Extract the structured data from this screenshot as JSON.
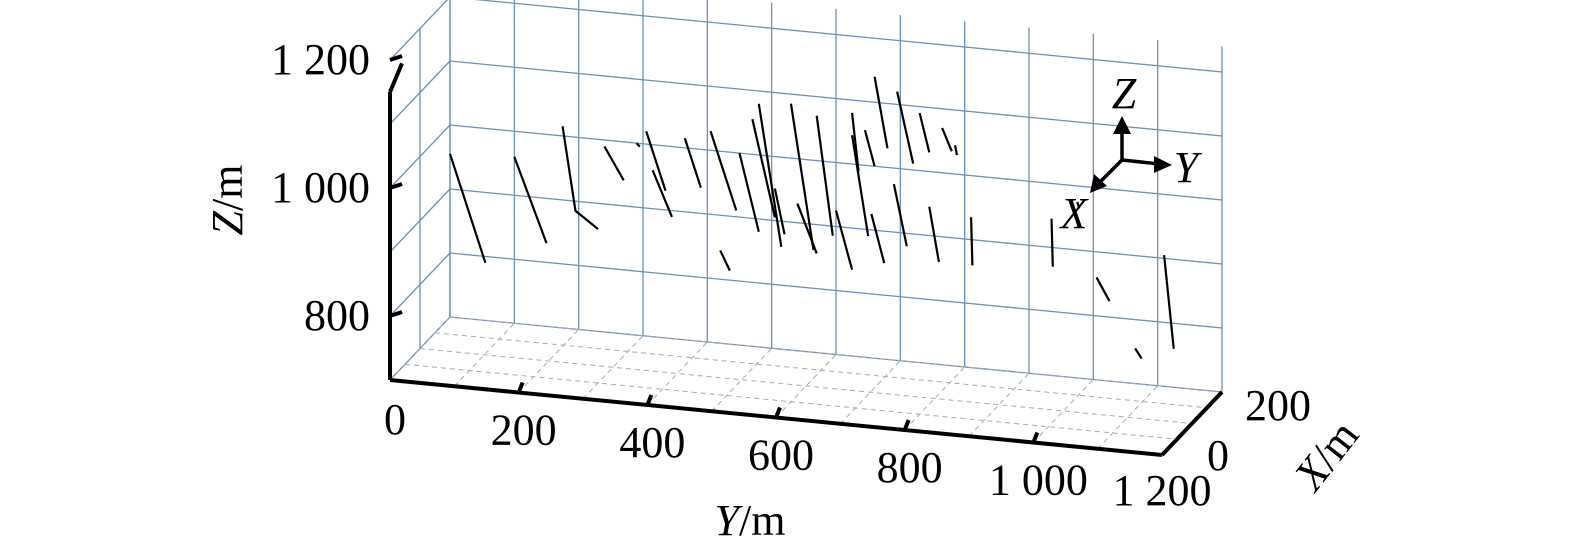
{
  "chart_data": {
    "type": "scatter",
    "subtype": "3d-line-traces",
    "xlabel": "X/m",
    "ylabel": "Y/m",
    "zlabel": "Z/m",
    "xlim": [
      0,
      200
    ],
    "ylim": [
      0,
      1200
    ],
    "zlim": [
      700,
      1200
    ],
    "x_ticks": [
      "0",
      "200"
    ],
    "y_ticks": [
      "0",
      "200",
      "400",
      "600",
      "800",
      "1 000",
      "1 200"
    ],
    "z_ticks": [
      "800",
      "1 000",
      "1 200"
    ],
    "orientation_triad": {
      "z": "Z",
      "y": "Y",
      "x": "X"
    },
    "grid": true,
    "trace_color": "#000000",
    "grid_color": "#6f8fb5",
    "traces": [
      {
        "y": [
          0,
          55
        ],
        "z": [
          955,
          790
        ]
      },
      {
        "y": [
          100,
          150
        ],
        "z": [
          960,
          830
        ]
      },
      {
        "y": [
          175,
          195,
          230
        ],
        "z": [
          1015,
          885,
          860
        ]
      },
      {
        "y": [
          240,
          270
        ],
        "z": [
          990,
          940
        ]
      },
      {
        "y": [
          290,
          295
        ],
        "z": [
          1000,
          995
        ]
      },
      {
        "y": [
          305,
          335
        ],
        "z": [
          1020,
          930
        ]
      },
      {
        "y": [
          315,
          345
        ],
        "z": [
          960,
          890
        ]
      },
      {
        "y": [
          365,
          390
        ],
        "z": [
          1015,
          940
        ]
      },
      {
        "y": [
          405,
          445
        ],
        "z": [
          1030,
          910
        ]
      },
      {
        "y": [
          420,
          435
        ],
        "z": [
          845,
          815
        ]
      },
      {
        "y": [
          450,
          480
        ],
        "z": [
          1000,
          880
        ]
      },
      {
        "y": [
          470,
          505
        ],
        "z": [
          1055,
          905
        ]
      },
      {
        "y": [
          480,
          515
        ],
        "z": [
          1080,
          860
        ]
      },
      {
        "y": [
          505,
          520
        ],
        "z": [
          950,
          880
        ]
      },
      {
        "y": [
          530,
          565
        ],
        "z": [
          1085,
          860
        ]
      },
      {
        "y": [
          540,
          570
        ],
        "z": [
          930,
          855
        ]
      },
      {
        "y": [
          570,
          595
        ],
        "z": [
          1070,
          885
        ]
      },
      {
        "y": [
          600,
          625
        ],
        "z": [
          925,
          835
        ]
      },
      {
        "y": [
          625,
          635
        ],
        "z": [
          1080,
          990
        ]
      },
      {
        "y": [
          625,
          650
        ],
        "z": [
          1045,
          890
        ]
      },
      {
        "y": [
          645,
          660
        ],
        "z": [
          1055,
          1000
        ]
      },
      {
        "y": [
          655,
          675
        ],
        "z": [
          925,
          850
        ]
      },
      {
        "y": [
          660,
          680
        ],
        "z": [
          1140,
          1030
        ]
      },
      {
        "y": [
          695,
          720
        ],
        "z": [
          1120,
          1010
        ]
      },
      {
        "y": [
          690,
          710
        ],
        "z": [
          975,
          880
        ]
      },
      {
        "y": [
          730,
          745
        ],
        "z": [
          1090,
          1030
        ]
      },
      {
        "y": [
          745,
          760
        ],
        "z": [
          945,
          860
        ]
      },
      {
        "y": [
          765,
          780
        ],
        "z": [
          1070,
          1035
        ]
      },
      {
        "y": [
          785,
          788
        ],
        "z": [
          1045,
          1030
        ]
      },
      {
        "y": [
          810,
          812
        ],
        "z": [
          935,
          860
        ]
      },
      {
        "y": [
          935,
          937
        ],
        "z": [
          945,
          870
        ]
      },
      {
        "y": [
          975,
          978
        ],
        "z": [
          975,
          965
        ]
      },
      {
        "y": [
          1005,
          1025
        ],
        "z": [
          860,
          825
        ]
      },
      {
        "y": [
          1065,
          1075
        ],
        "z": [
          755,
          740
        ]
      },
      {
        "y": [
          1110,
          1125
        ],
        "z": [
          905,
          760
        ]
      }
    ]
  }
}
